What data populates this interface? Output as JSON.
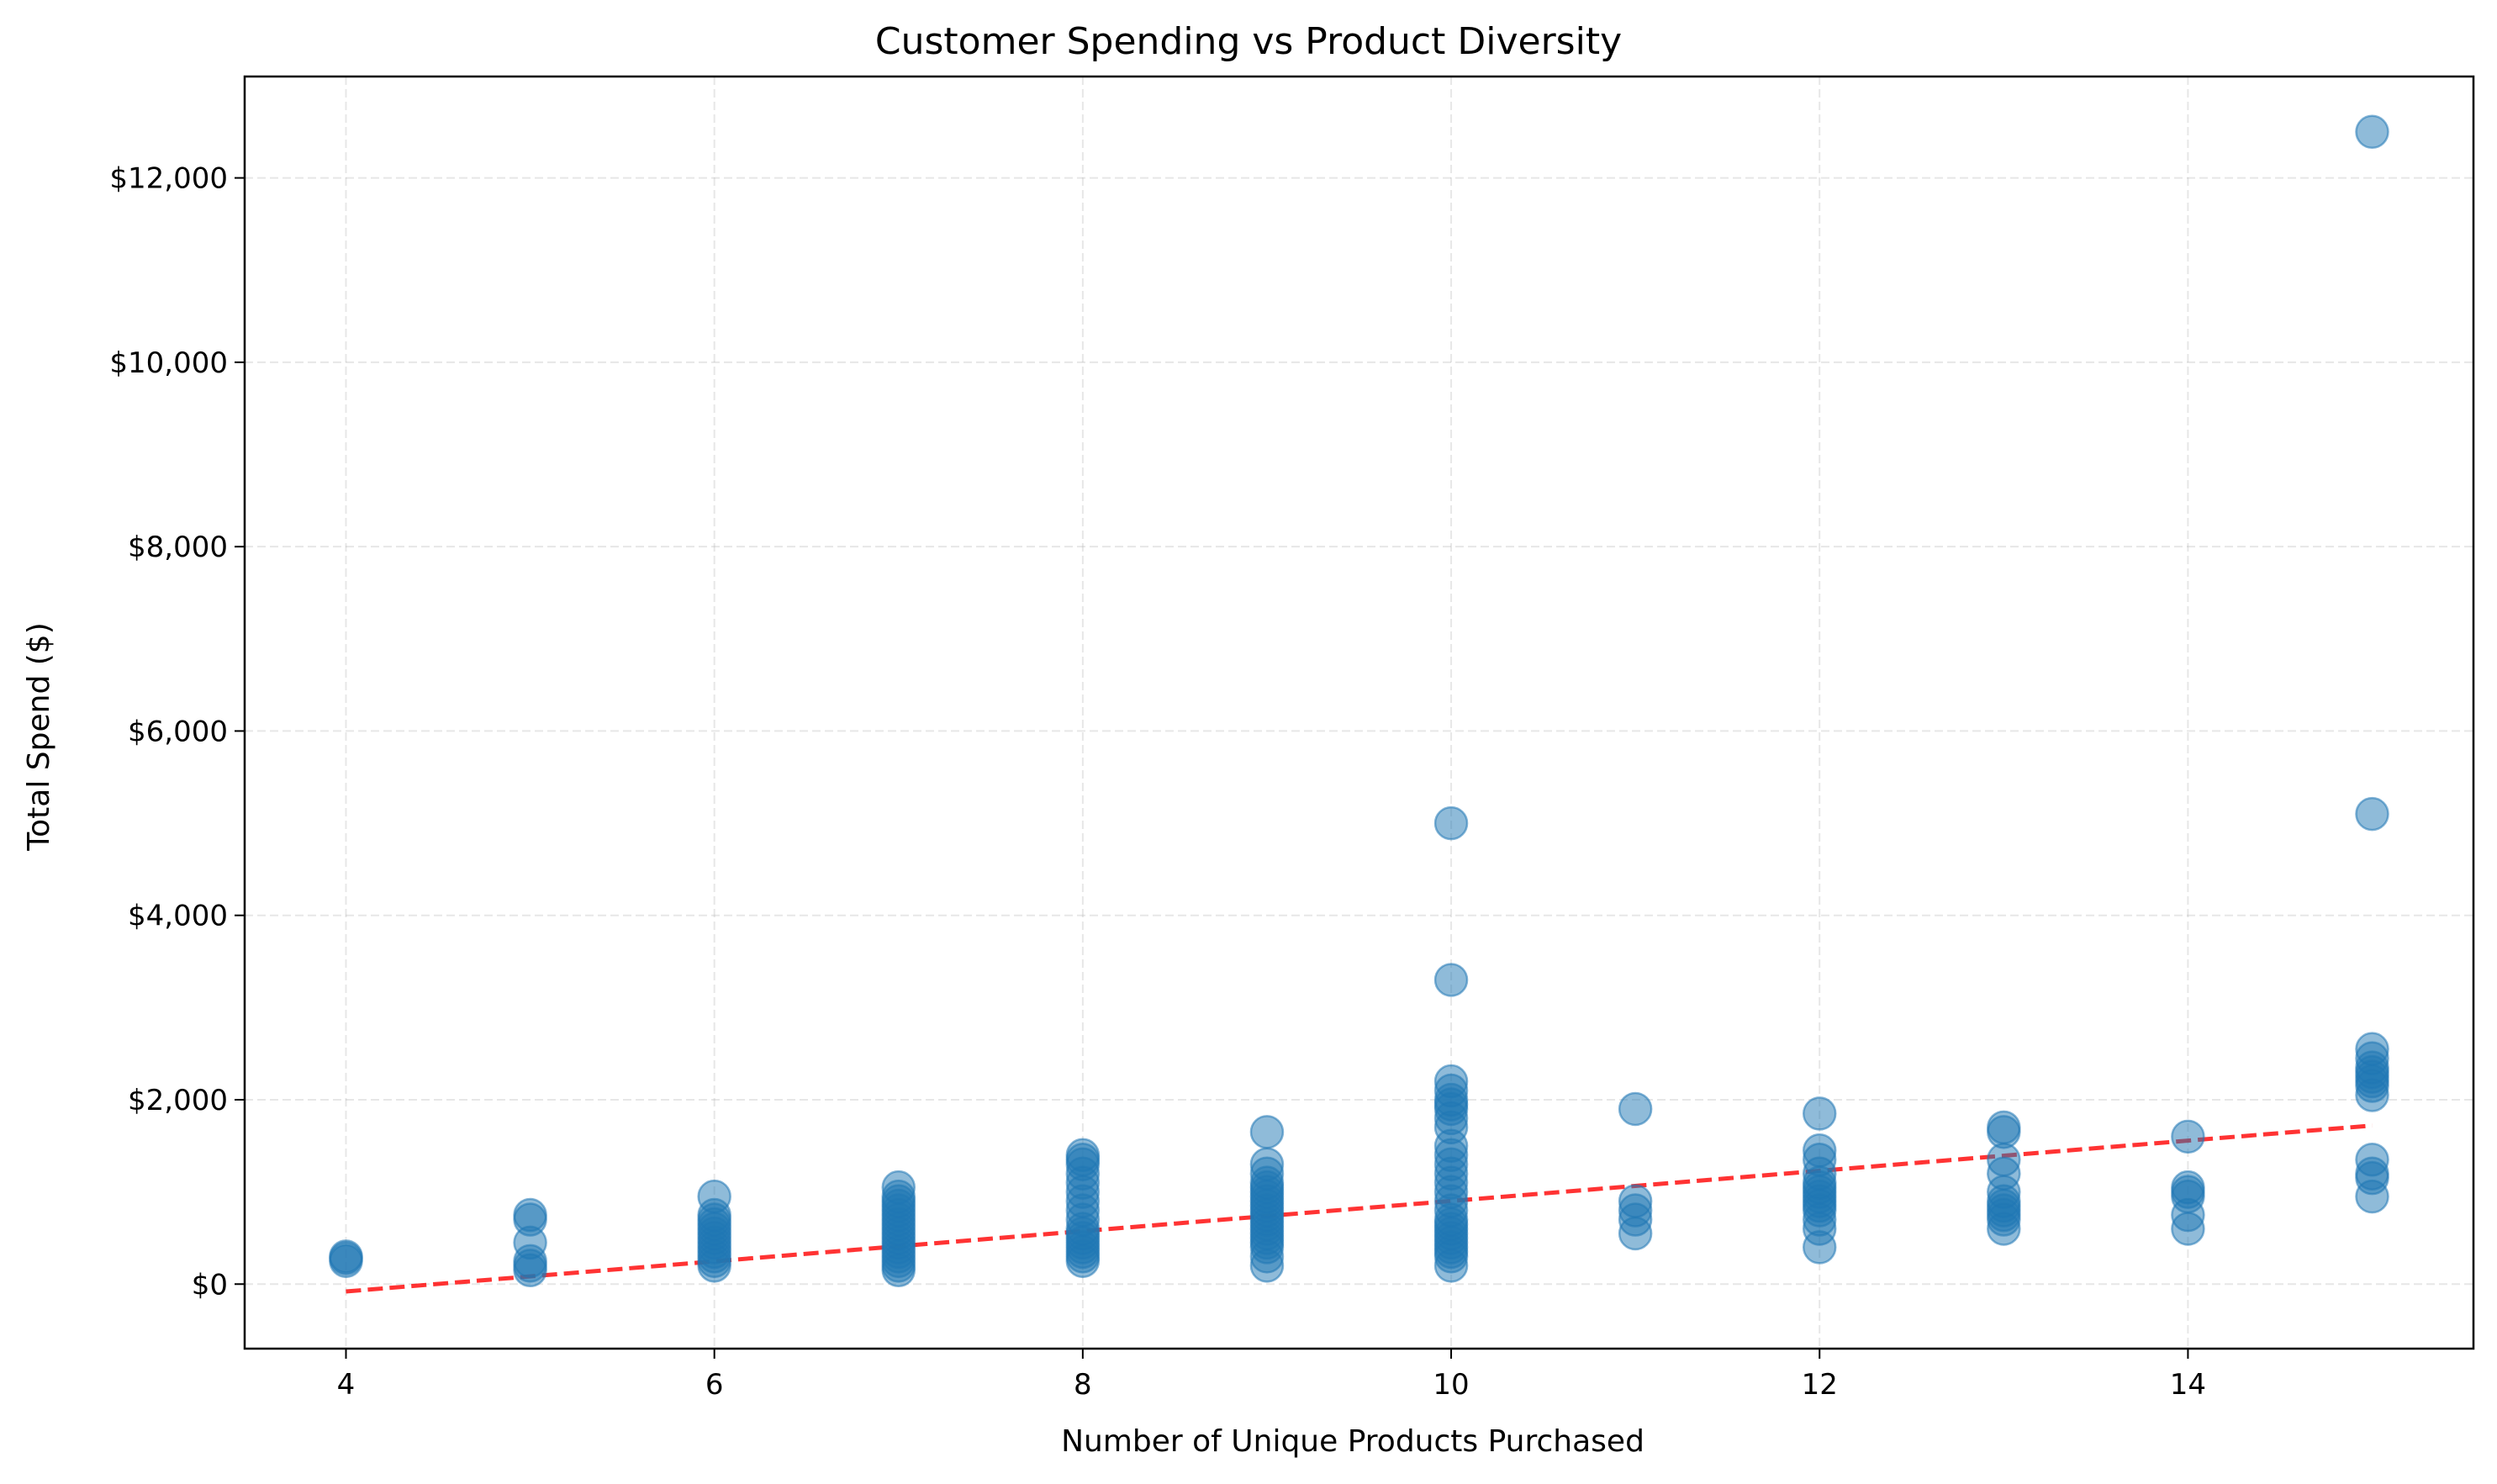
{
  "chart_data": {
    "type": "scatter",
    "title": "Customer Spending vs Product Diversity",
    "xlabel": "Number of Unique Products Purchased",
    "ylabel": "Total Spend ($)",
    "xlim": [
      3.45,
      15.55
    ],
    "ylim": [
      -700,
      13100
    ],
    "xticks": [
      4,
      6,
      8,
      10,
      12,
      14
    ],
    "yticks": [
      0,
      2000,
      4000,
      6000,
      8000,
      10000,
      12000
    ],
    "ytick_labels": [
      "$0",
      "$2,000",
      "$4,000",
      "$6,000",
      "$8,000",
      "$10,000",
      "$12,000"
    ],
    "grid": true,
    "grid_style": "dashed",
    "colors": {
      "points": "#1f77b4",
      "trend": "#ff0000"
    },
    "series": [
      {
        "marker": "circle",
        "x": [
          4,
          4,
          4,
          5,
          5,
          5,
          5,
          5,
          5,
          6,
          6,
          6,
          6,
          6,
          6,
          6,
          6,
          6,
          6,
          6,
          6,
          6,
          7,
          7,
          7,
          7,
          7,
          7,
          7,
          7,
          7,
          7,
          7,
          7,
          7,
          7,
          7,
          7,
          7,
          7,
          8,
          8,
          8,
          8,
          8,
          8,
          8,
          8,
          8,
          8,
          8,
          8,
          8,
          8,
          8,
          8,
          8,
          9,
          9,
          9,
          9,
          9,
          9,
          9,
          9,
          9,
          9,
          9,
          9,
          9,
          9,
          9,
          9,
          9,
          9,
          9,
          9,
          10,
          10,
          10,
          10,
          10,
          10,
          10,
          10,
          10,
          10,
          10,
          10,
          10,
          10,
          10,
          10,
          10,
          10,
          10,
          10,
          10,
          10,
          10,
          10,
          10,
          10,
          10,
          11,
          11,
          11,
          11,
          11,
          12,
          12,
          12,
          12,
          12,
          12,
          12,
          12,
          12,
          12,
          12,
          12,
          12,
          12,
          13,
          13,
          13,
          13,
          13,
          13,
          13,
          13,
          13,
          13,
          13,
          14,
          14,
          14,
          14,
          14,
          14,
          15,
          15,
          15,
          15,
          15,
          15,
          15,
          15,
          15,
          15,
          15,
          15,
          15,
          15
        ],
        "y": [
          250,
          280,
          300,
          150,
          200,
          250,
          450,
          700,
          750,
          200,
          250,
          300,
          350,
          400,
          450,
          500,
          550,
          600,
          650,
          700,
          750,
          950,
          150,
          200,
          250,
          300,
          350,
          400,
          450,
          500,
          550,
          600,
          650,
          700,
          750,
          800,
          850,
          900,
          950,
          1050,
          250,
          300,
          350,
          400,
          450,
          500,
          550,
          600,
          700,
          800,
          900,
          1000,
          1100,
          1200,
          1300,
          1350,
          1400,
          200,
          300,
          400,
          450,
          500,
          550,
          600,
          650,
          700,
          750,
          800,
          850,
          900,
          950,
          1000,
          1050,
          1100,
          1200,
          1300,
          1650,
          200,
          300,
          350,
          400,
          450,
          500,
          550,
          600,
          650,
          700,
          800,
          900,
          1000,
          1100,
          1200,
          1300,
          1400,
          1500,
          1700,
          1800,
          1900,
          1950,
          2000,
          2100,
          2200,
          3300,
          5000,
          550,
          700,
          800,
          900,
          1900,
          400,
          600,
          700,
          800,
          850,
          900,
          950,
          1000,
          1050,
          1100,
          1200,
          1350,
          1450,
          1850,
          600,
          700,
          750,
          800,
          850,
          900,
          1000,
          1200,
          1350,
          1650,
          1700,
          600,
          750,
          950,
          1000,
          1050,
          1600,
          950,
          1150,
          1200,
          1350,
          2050,
          2150,
          2200,
          2250,
          2300,
          2350,
          2450,
          2550,
          5100,
          12500
        ]
      }
    ],
    "trend_line": {
      "x": [
        4,
        15
      ],
      "y": [
        -80,
        1720
      ]
    }
  }
}
